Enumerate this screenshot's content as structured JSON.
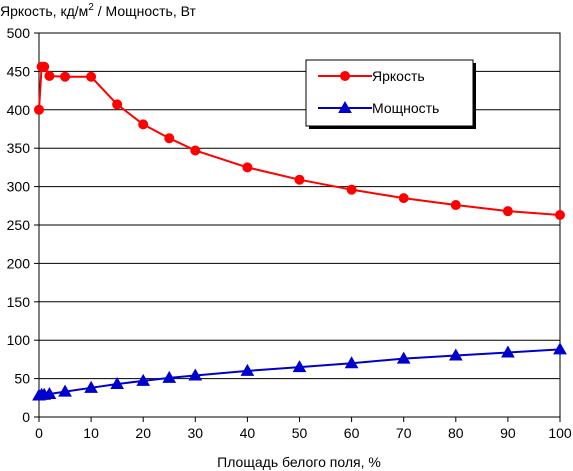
{
  "chart_data": {
    "type": "line",
    "title": "",
    "ylabel_main": "Яркость, кд/м",
    "ylabel_sup": "2",
    "ylabel_rest": " / Мощность, Вт",
    "xlabel": "Площадь белого поля, %",
    "xlim": [
      0,
      100
    ],
    "ylim": [
      0,
      500
    ],
    "xticks": [
      0,
      10,
      20,
      30,
      40,
      50,
      60,
      70,
      80,
      90,
      100
    ],
    "yticks": [
      0,
      50,
      100,
      150,
      200,
      250,
      300,
      350,
      400,
      450,
      500
    ],
    "grid": "horizontal",
    "legend_position": "top-right",
    "series": [
      {
        "name": "Яркость",
        "color": "#ff0000",
        "marker": "circle",
        "x": [
          0,
          0.5,
          1,
          2,
          5,
          10,
          15,
          20,
          25,
          30,
          40,
          50,
          60,
          70,
          80,
          90,
          100
        ],
        "y": [
          400,
          456,
          456,
          444,
          443,
          443,
          407,
          381,
          363,
          347,
          325,
          309,
          296,
          285,
          276,
          268,
          263
        ]
      },
      {
        "name": "Мощность",
        "color": "#0000cc",
        "marker": "triangle",
        "x": [
          0,
          0.5,
          1,
          2,
          5,
          10,
          15,
          20,
          25,
          30,
          40,
          50,
          60,
          70,
          80,
          90,
          100
        ],
        "y": [
          28,
          29,
          29,
          30,
          33,
          38,
          43,
          47,
          51,
          54,
          60,
          65,
          70,
          76,
          80,
          84,
          88
        ]
      }
    ]
  }
}
